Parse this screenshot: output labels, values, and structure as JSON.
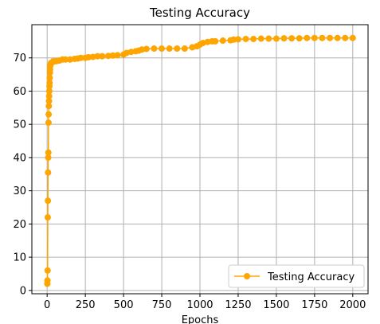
{
  "chart_data": {
    "type": "line",
    "title": "Testing Accuracy",
    "xlabel": "Epochs",
    "ylabel": "",
    "xlim": [
      -100,
      2100
    ],
    "ylim": [
      -1,
      80
    ],
    "xticks": [
      0,
      250,
      500,
      750,
      1000,
      1250,
      1500,
      1750,
      2000
    ],
    "yticks": [
      0,
      10,
      20,
      30,
      40,
      50,
      60,
      70
    ],
    "grid": true,
    "legend_position": "bottom-right",
    "colors": {
      "series": "#ffa500",
      "grid": "#b0b0b0",
      "axes": "#000000"
    },
    "series": [
      {
        "name": "Testing Accuracy",
        "marker": "circle",
        "x": [
          1,
          2,
          3,
          4,
          5,
          6,
          7,
          8,
          9,
          10,
          11,
          12,
          13,
          14,
          15,
          16,
          17,
          18,
          19,
          20,
          22,
          25,
          30,
          40,
          50,
          60,
          80,
          100,
          120,
          150,
          180,
          200,
          220,
          250,
          270,
          300,
          330,
          360,
          400,
          430,
          460,
          500,
          520,
          550,
          580,
          600,
          620,
          650,
          700,
          750,
          800,
          850,
          900,
          950,
          980,
          1000,
          1020,
          1050,
          1080,
          1100,
          1150,
          1200,
          1220,
          1250,
          1300,
          1350,
          1400,
          1450,
          1500,
          1550,
          1600,
          1650,
          1700,
          1750,
          1800,
          1850,
          1900,
          1950,
          2000
        ],
        "values": [
          2,
          3,
          6,
          22,
          27,
          35.5,
          40,
          41.5,
          50.5,
          53,
          55.5,
          57,
          58.5,
          60,
          61.5,
          62.5,
          64,
          65.5,
          66.5,
          67.5,
          68,
          68.5,
          68.5,
          69,
          69,
          69,
          69.2,
          69.5,
          69.5,
          69.5,
          69.7,
          69.8,
          70,
          70,
          70.2,
          70.3,
          70.5,
          70.5,
          70.6,
          70.7,
          70.8,
          71,
          71.5,
          71.8,
          72,
          72.2,
          72.5,
          72.7,
          72.8,
          72.8,
          72.8,
          72.8,
          72.8,
          73.2,
          73.5,
          74,
          74.5,
          74.8,
          75,
          75,
          75.2,
          75.3,
          75.5,
          75.6,
          75.7,
          75.7,
          75.8,
          75.8,
          75.8,
          75.9,
          75.9,
          75.9,
          76,
          76,
          76,
          76,
          76,
          76,
          76
        ]
      }
    ]
  }
}
